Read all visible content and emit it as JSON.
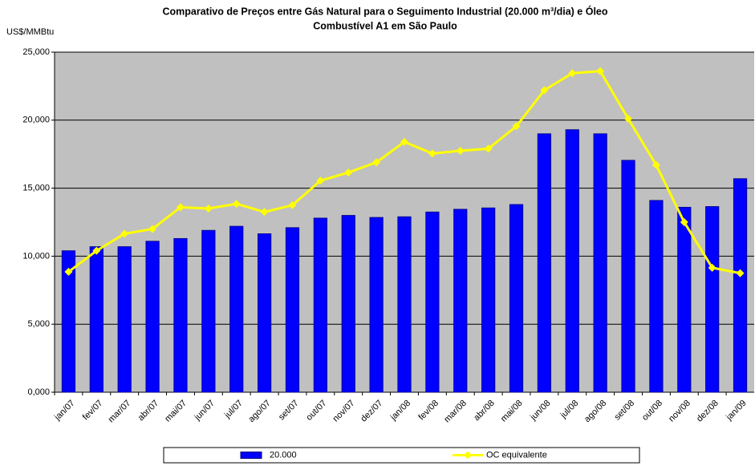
{
  "chart_data": {
    "type": "bar-line",
    "title": [
      "Comparativo de Preços entre Gás Natural para o Seguimento Industrial (20.000 m³/dia) e Óleo",
      "Combustível A1 em São Paulo"
    ],
    "y_label": "US$/MMBtu",
    "categories": [
      "jan/07",
      "fev/07",
      "mar/07",
      "abr/07",
      "mai/07",
      "jun/07",
      "jul/07",
      "ago/07",
      "set/07",
      "out/07",
      "nov/07",
      "dez/07",
      "jan/08",
      "fev/08",
      "mar/08",
      "abr/08",
      "mai/08",
      "jun/08",
      "jul/08",
      "ago/08",
      "set/08",
      "out/08",
      "nov/08",
      "dez/08",
      "jan/09"
    ],
    "series": [
      {
        "name": "20.000",
        "type": "bar",
        "color": "#0000ff",
        "values": [
          10.4,
          10.7,
          10.7,
          11.1,
          11.3,
          11.9,
          12.2,
          11.65,
          12.1,
          12.8,
          13.0,
          12.85,
          12.9,
          13.25,
          13.45,
          13.55,
          13.8,
          19.0,
          19.3,
          19.0,
          17.05,
          14.1,
          13.6,
          13.65,
          15.7
        ]
      },
      {
        "name": "OC equivalente",
        "type": "line",
        "color": "#ffff00",
        "values": [
          8.85,
          10.4,
          11.65,
          12.0,
          13.6,
          13.5,
          13.85,
          13.25,
          13.75,
          15.55,
          16.15,
          16.9,
          18.4,
          17.55,
          17.75,
          17.9,
          19.55,
          22.2,
          23.45,
          23.6,
          20.1,
          16.7,
          12.5,
          9.15,
          8.75
        ]
      }
    ],
    "ylim": [
      0,
      25
    ],
    "yticks": [
      {
        "value": 0,
        "label": "0,000"
      },
      {
        "value": 5,
        "label": "5,000"
      },
      {
        "value": 10,
        "label": "10,000"
      },
      {
        "value": 15,
        "label": "15,000"
      },
      {
        "value": 20,
        "label": "20,000"
      },
      {
        "value": 25,
        "label": "25,000"
      }
    ],
    "grid": true,
    "legend": "bottom"
  }
}
